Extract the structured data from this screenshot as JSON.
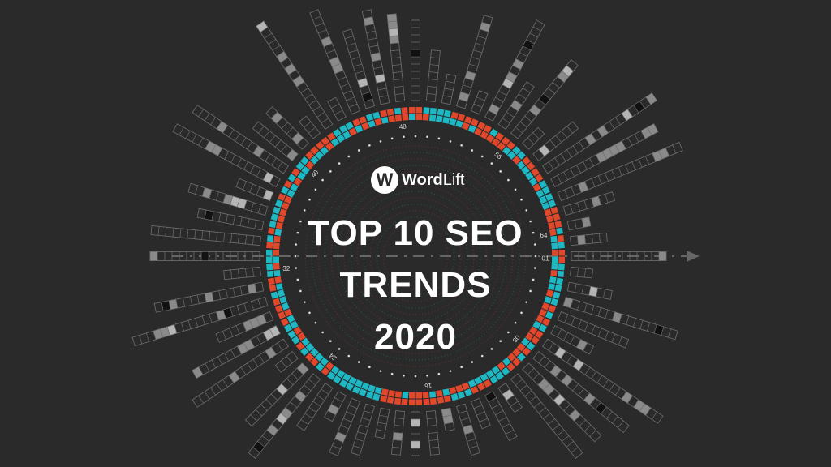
{
  "logo": {
    "mark": "W",
    "name_bold": "Word",
    "name_light": "Lift"
  },
  "title": {
    "line1": "TOP 10 SEO",
    "line2": "TRENDS",
    "line3": "2020"
  },
  "ring_labels": [
    "01",
    "08",
    "16",
    "24",
    "32",
    "40",
    "48",
    "56",
    "64"
  ],
  "colors": {
    "background": "#2a2a2a",
    "red": "#e0472b",
    "teal": "#1db8c4",
    "grey": "#8a8a8a",
    "outline": "#6a6a6a",
    "white": "#ffffff"
  }
}
